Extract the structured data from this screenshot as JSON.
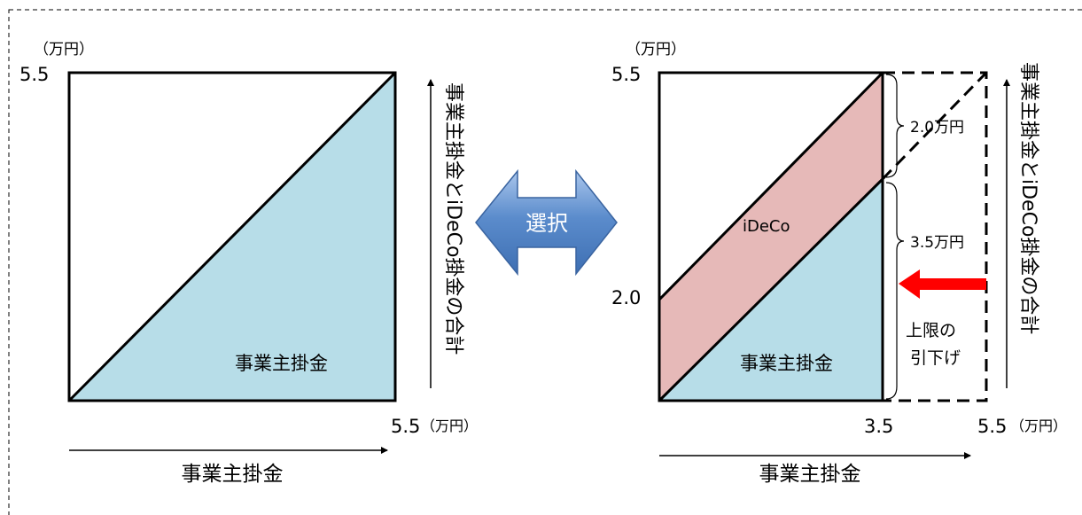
{
  "left_panel": {
    "unit_top": "（万円）",
    "y_max": "5.5",
    "x_max": "5.5",
    "unit_right": "（万円）",
    "fill_label": "事業主掛金",
    "x_axis_label": "事業主掛金",
    "vertical_label": "事業主掛金とiDeCo掛金の合計"
  },
  "middle": {
    "choice_label": "選択"
  },
  "right_panel": {
    "unit_top": "（万円）",
    "y_max": "5.5",
    "y_mid": "2.0",
    "x_cut": "3.5",
    "x_max": "5.5",
    "unit_right": "（万円）",
    "ideco_label": "iDeCo",
    "employer_label": "事業主掛金",
    "x_axis_label": "事業主掛金",
    "bracket_upper": "2.0万円",
    "bracket_lower": "3.5万円",
    "limit_line1": "上限の",
    "limit_line2": "引下げ",
    "vertical_label": "事業主掛金とiDeCo掛金の合計"
  },
  "colors": {
    "employer_fill": "#b7dde8",
    "ideco_fill": "#e6b9b8",
    "choice_arrow": "#5b8ccc",
    "limit_arrow": "#ff0000"
  }
}
